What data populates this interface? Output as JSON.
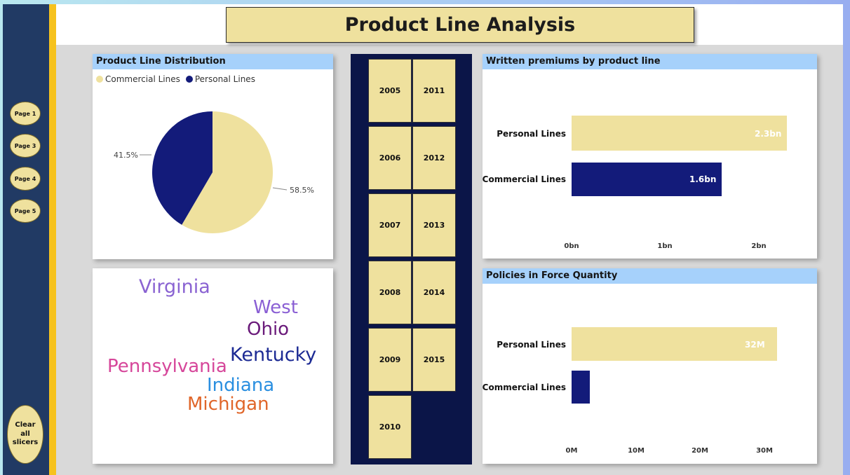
{
  "page_title": "Product Line Analysis",
  "nav": {
    "pages": [
      "Page 1",
      "Page 3",
      "Page 4",
      "Page 5"
    ],
    "clear_label": "Clear all slicers"
  },
  "colors": {
    "commercial": "#efe19e",
    "personal": "#131b7a",
    "sidebar": "#213a64",
    "accent": "#f6c21e",
    "card_header": "#a6d1fb"
  },
  "distribution": {
    "title": "Product Line Distribution",
    "legend": [
      "Commercial Lines",
      "Personal Lines"
    ],
    "label_personal": "41.5%",
    "label_commercial": "58.5%"
  },
  "word_cloud": {
    "words": [
      {
        "text": "Virginia",
        "color": "#8a63d2"
      },
      {
        "text": "West",
        "color": "#8a5fd4"
      },
      {
        "text": "Ohio",
        "color": "#6a1a7a"
      },
      {
        "text": "Kentucky",
        "color": "#1c2a94"
      },
      {
        "text": "Pennsylvania",
        "color": "#d6469a"
      },
      {
        "text": "Indiana",
        "color": "#2a8fe0"
      },
      {
        "text": "Michigan",
        "color": "#e0662a"
      }
    ]
  },
  "year_slicer": {
    "years": [
      "2005",
      "2011",
      "2006",
      "2012",
      "2007",
      "2013",
      "2008",
      "2014",
      "2009",
      "2015",
      "2010"
    ]
  },
  "chart_data": [
    {
      "type": "pie",
      "title": "Product Line Distribution",
      "categories": [
        "Commercial Lines",
        "Personal Lines"
      ],
      "values": [
        58.5,
        41.5
      ],
      "unit": "%",
      "legend": "top-left"
    },
    {
      "type": "bar",
      "title": "Written premiums by product line",
      "orientation": "horizontal",
      "categories": [
        "Personal Lines",
        "Commercial Lines"
      ],
      "values": [
        2.3,
        1.6
      ],
      "value_labels": [
        "2.3bn",
        "1.6bn"
      ],
      "ticks": [
        "0bn",
        "1bn",
        "2bn"
      ],
      "xlim": [
        0,
        2.3
      ],
      "unit": "bn"
    },
    {
      "type": "bar",
      "title": "Policies in Force Quantity",
      "orientation": "horizontal",
      "categories": [
        "Personal Lines",
        "Commercial Lines"
      ],
      "values": [
        32,
        2.8
      ],
      "value_labels": [
        "32M",
        ""
      ],
      "ticks": [
        "0M",
        "10M",
        "20M",
        "30M"
      ],
      "xlim": [
        0,
        32
      ],
      "unit": "M"
    }
  ]
}
